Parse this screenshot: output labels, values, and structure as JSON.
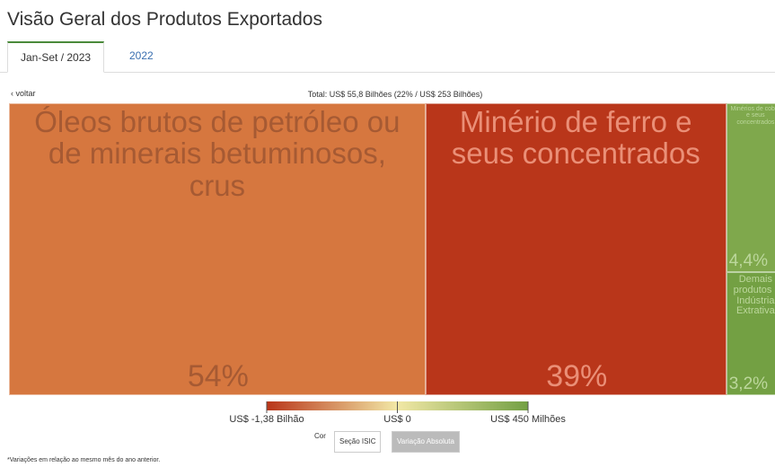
{
  "header": {
    "title": "Visão Geral dos Produtos Exportados",
    "tabs": [
      "Jan-Set / 2023",
      "2022"
    ]
  },
  "nav": {
    "back": "‹ voltar"
  },
  "chart_data": {
    "type": "treemap",
    "title": "Total: US$ 55,8 Bilhões (22% / US$ 253 Bilhões)",
    "categories": [
      "Óleos brutos de petróleo ou de minerais betuminosos, crus",
      "Minério de ferro e seus concentrados",
      "Minérios de cobre e seus concentrados",
      "Demais produtos - Indústria Extrativa"
    ],
    "values": [
      54,
      39,
      4.4,
      3.2
    ],
    "value_labels": [
      "54%",
      "39%",
      "4,4%",
      "3,2%"
    ],
    "colors": [
      "#d6773f",
      "#b9361a",
      "#7fa84c",
      "#73a043"
    ],
    "color_scale": {
      "colors": [
        "#b9361a",
        "#f2e8a6",
        "#73a043"
      ],
      "ticks": [
        {
          "value": -1380,
          "label": "US$ -1,38 Bilhão"
        },
        {
          "value": 0,
          "label": "US$ 0"
        },
        {
          "value": 450,
          "label": "US$ 450 Milhões"
        }
      ]
    },
    "color_control": {
      "label": "Cor",
      "options": [
        "Seção ISIC",
        "Variação Absoluta"
      ]
    }
  },
  "footnote": "*Variações em relação ao mesmo mês do ano anterior."
}
